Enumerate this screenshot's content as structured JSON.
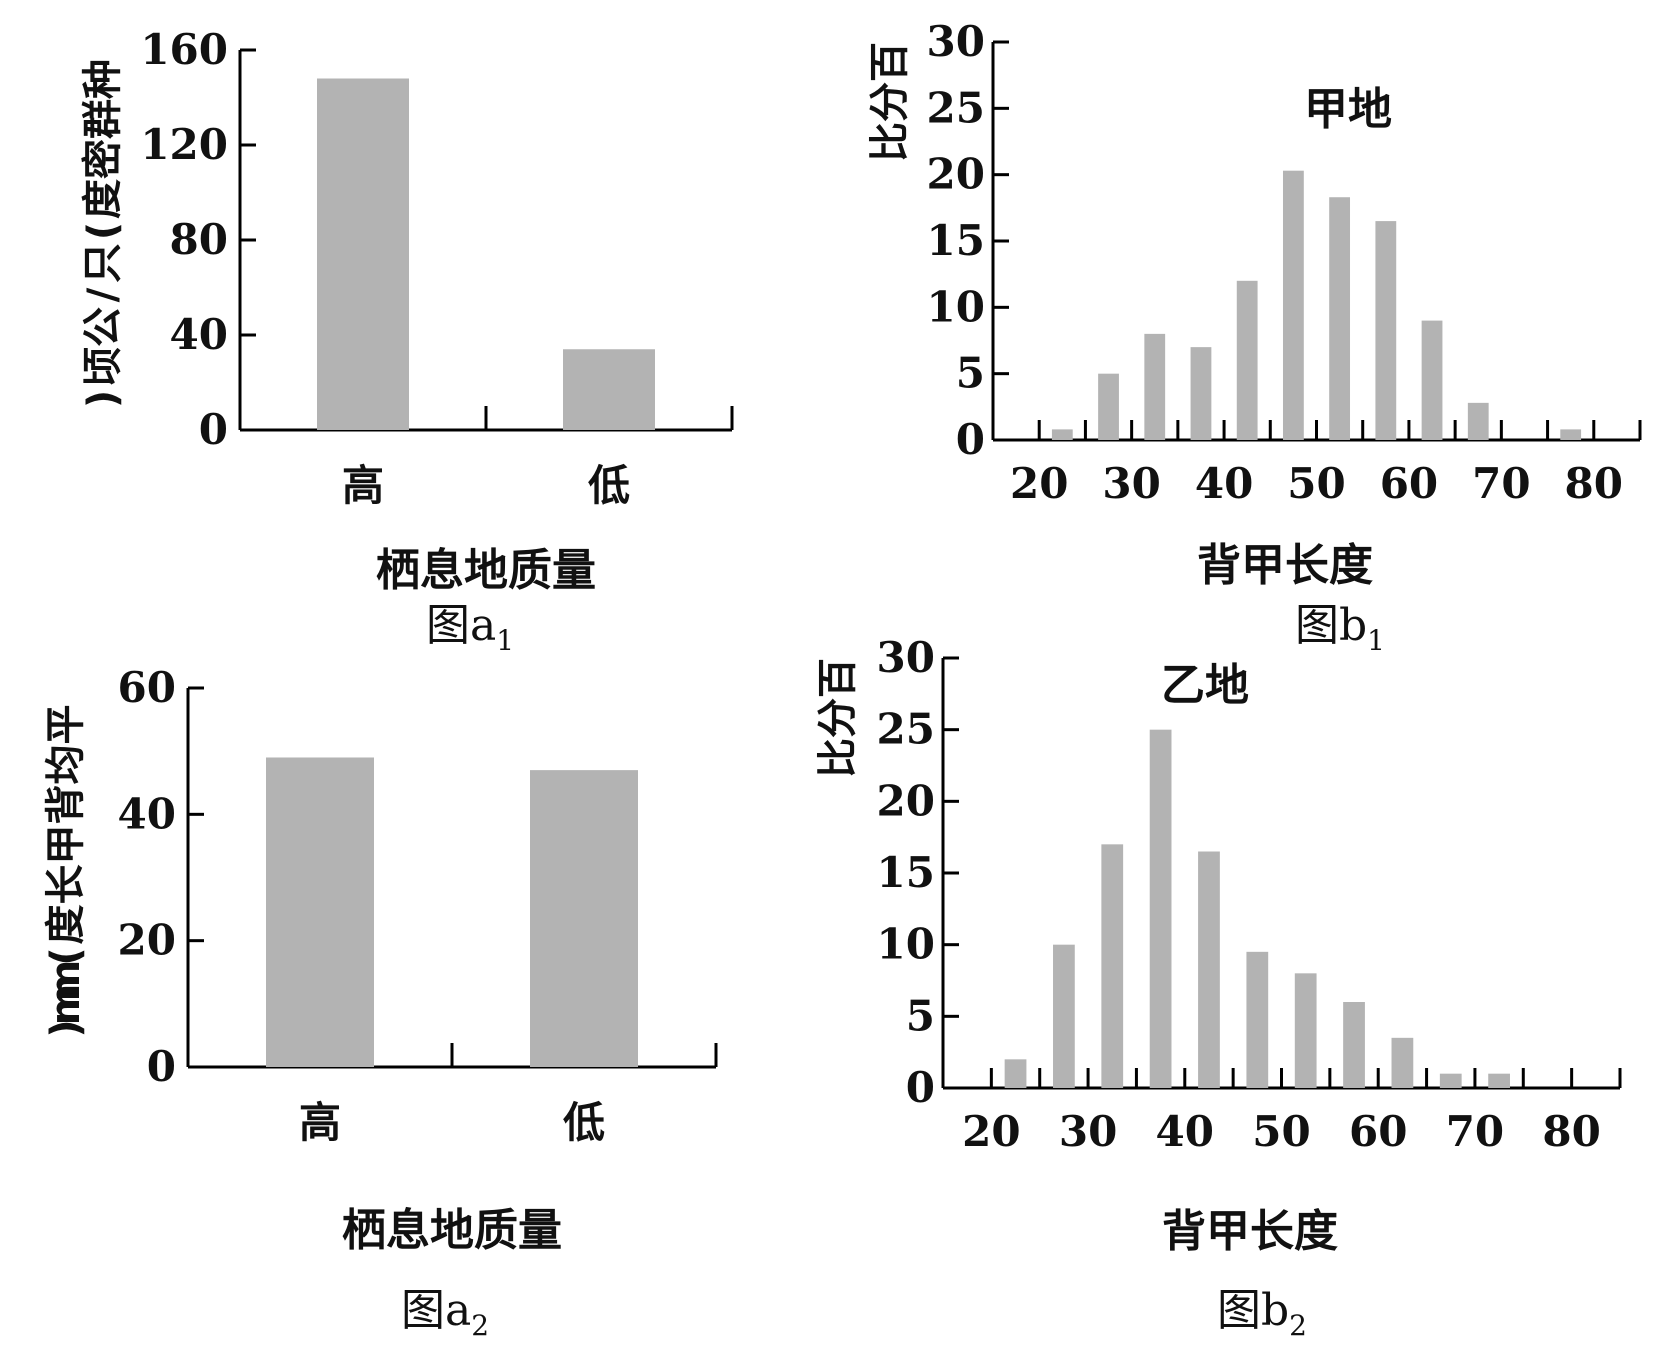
{
  "chart_data": [
    {
      "id": "a1",
      "type": "bar",
      "caption": "图a",
      "caption_sub": "1",
      "title": "",
      "xlabel": "栖息地质量",
      "ylabel": "种群密度(只/公顷)",
      "categories": [
        "高",
        "低"
      ],
      "values": [
        148,
        34
      ],
      "ylim": [
        0,
        160
      ],
      "yticks": [
        "0",
        "40",
        "80",
        "120",
        "160"
      ],
      "grid": false
    },
    {
      "id": "b1",
      "type": "bar",
      "caption": "图b",
      "caption_sub": "1",
      "title": "甲地",
      "xlabel": "背甲长度",
      "ylabel": "百分比",
      "x": [
        22.5,
        27.5,
        32.5,
        37.5,
        42.5,
        47.5,
        52.5,
        57.5,
        62.5,
        67.5,
        77.5
      ],
      "values": [
        0.8,
        5.0,
        8.0,
        7.0,
        12.0,
        20.3,
        18.3,
        16.5,
        9.0,
        2.8,
        0.8
      ],
      "xlim": [
        15,
        85
      ],
      "ylim": [
        0,
        30
      ],
      "xticks": [
        "20",
        "30",
        "40",
        "50",
        "60",
        "70",
        "80"
      ],
      "yticks": [
        "0",
        "5",
        "10",
        "15",
        "20",
        "25",
        "30"
      ],
      "grid": false
    },
    {
      "id": "a2",
      "type": "bar",
      "caption": "图a",
      "caption_sub": "2",
      "title": "",
      "xlabel": "栖息地质量",
      "ylabel": "平均背甲长度(mm)",
      "categories": [
        "高",
        "低"
      ],
      "values": [
        49,
        47
      ],
      "ylim": [
        0,
        60
      ],
      "yticks": [
        "0",
        "20",
        "40",
        "60"
      ],
      "grid": false
    },
    {
      "id": "b2",
      "type": "bar",
      "caption": "图b",
      "caption_sub": "2",
      "title": "乙地",
      "xlabel": "背甲长度",
      "ylabel": "百分比",
      "x": [
        22.5,
        27.5,
        32.5,
        37.5,
        42.5,
        47.5,
        52.5,
        57.5,
        62.5,
        67.5,
        72.5
      ],
      "values": [
        2.0,
        10.0,
        17.0,
        25.0,
        16.5,
        9.5,
        8.0,
        6.0,
        3.5,
        1.0,
        1.0
      ],
      "xlim": [
        15,
        85
      ],
      "ylim": [
        0,
        30
      ],
      "xticks": [
        "20",
        "30",
        "40",
        "50",
        "60",
        "70",
        "80"
      ],
      "yticks": [
        "0",
        "5",
        "10",
        "15",
        "20",
        "25",
        "30"
      ],
      "grid": false
    }
  ]
}
